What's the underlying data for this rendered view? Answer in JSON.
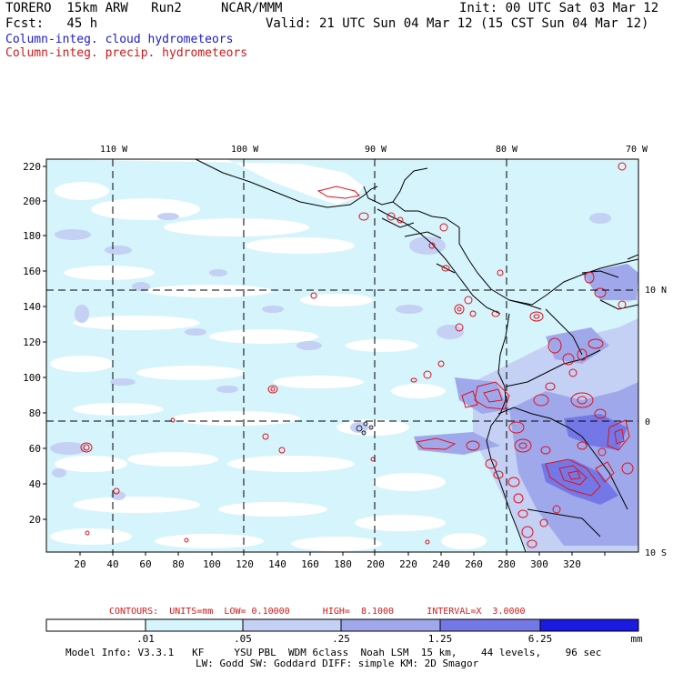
{
  "header": {
    "model": "TORERO  15km ARW   Run2",
    "org": "NCAR/MMM",
    "init": "Init: 00 UTC Sat 03 Mar 12",
    "fcst": "Fcst:   45 h",
    "valid": "Valid: 21 UTC Sun 04 Mar 12 (15 CST Sun 04 Mar 12)",
    "field1": "Column-integ. cloud hydrometeors",
    "field2": "Column-integ. precip. hydrometeors"
  },
  "map": {
    "top_lon_labels": [
      "110 W",
      "100 W",
      "90 W",
      "80 W",
      "70 W"
    ],
    "right_lat_labels": [
      "10 N",
      "0",
      "10 S"
    ],
    "left_grid_labels": [
      "220",
      "200",
      "180",
      "160",
      "140",
      "120",
      "100",
      "80",
      "60",
      "40",
      "20"
    ],
    "bottom_grid_labels": [
      "20",
      "40",
      "60",
      "80",
      "100",
      "120",
      "140",
      "160",
      "180",
      "200",
      "220",
      "240",
      "260",
      "280",
      "300",
      "320"
    ]
  },
  "contour_note": "CONTOURS:  UNITS=mm  LOW= 0.10000      HIGH=  8.1000      INTERVAL=X  3.0000",
  "colorbar": {
    "labels": [
      ".01",
      ".05",
      ".25",
      "1.25",
      "6.25"
    ],
    "unit": "mm",
    "colors": [
      "#ffffff",
      "#d6f4fb",
      "#c4d0f4",
      "#a0a8ec",
      "#7478e6",
      "#3b3be8",
      "#1a1ae0"
    ]
  },
  "footer": {
    "line1": "Model Info: V3.3.1   KF     YSU PBL  WDM 6class  Noah LSM  15 km,    44 levels,    96 sec",
    "line2": "LW: Godd SW: Goddard DIFF: simple KM: 2D Smagor"
  }
}
